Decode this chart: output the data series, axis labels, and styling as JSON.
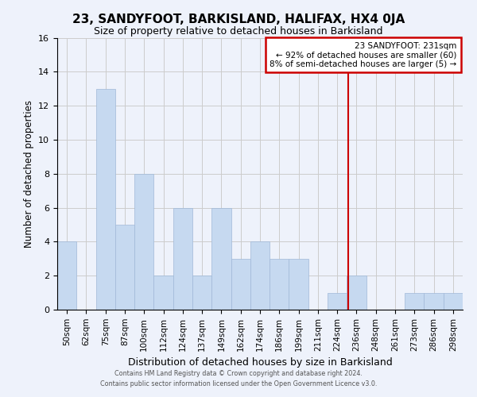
{
  "title": "23, SANDYFOOT, BARKISLAND, HALIFAX, HX4 0JA",
  "subtitle": "Size of property relative to detached houses in Barkisland",
  "xlabel": "Distribution of detached houses by size in Barkisland",
  "ylabel": "Number of detached properties",
  "categories": [
    "50sqm",
    "62sqm",
    "75sqm",
    "87sqm",
    "100sqm",
    "112sqm",
    "124sqm",
    "137sqm",
    "149sqm",
    "162sqm",
    "174sqm",
    "186sqm",
    "199sqm",
    "211sqm",
    "224sqm",
    "236sqm",
    "248sqm",
    "261sqm",
    "273sqm",
    "286sqm",
    "298sqm"
  ],
  "values": [
    4,
    0,
    13,
    5,
    8,
    2,
    6,
    2,
    6,
    3,
    4,
    3,
    3,
    0,
    1,
    2,
    0,
    0,
    1,
    1,
    1
  ],
  "bar_color": "#c6d9f0",
  "bar_edge_color": "#a0b8d8",
  "marker_line_color": "#cc0000",
  "annotation_title": "23 SANDYFOOT: 231sqm",
  "annotation_line1": "← 92% of detached houses are smaller (60)",
  "annotation_line2": "8% of semi-detached houses are larger (5) →",
  "annotation_box_color": "#cc0000",
  "ylim": [
    0,
    16
  ],
  "yticks": [
    0,
    2,
    4,
    6,
    8,
    10,
    12,
    14,
    16
  ],
  "grid_color": "#cccccc",
  "background_color": "#eef2fb",
  "footer_line1": "Contains HM Land Registry data © Crown copyright and database right 2024.",
  "footer_line2": "Contains public sector information licensed under the Open Government Licence v3.0."
}
